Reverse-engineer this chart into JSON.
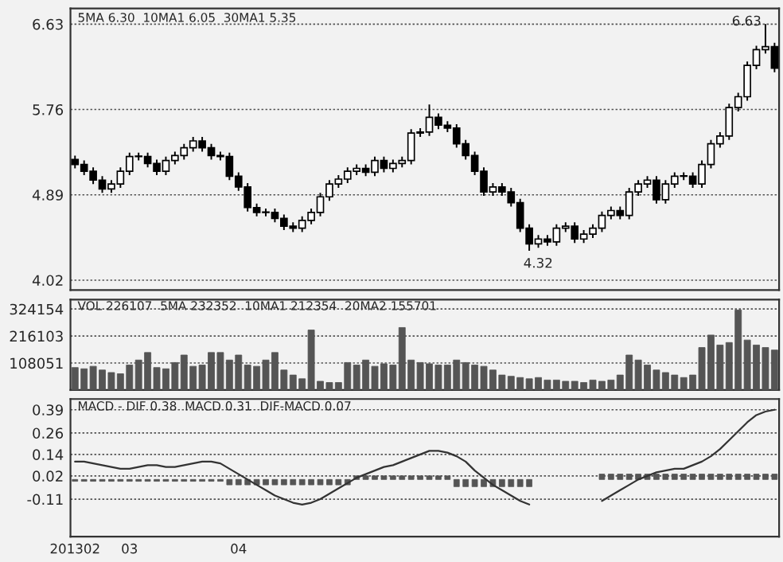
{
  "chart_data": [
    {
      "type": "candlestick",
      "categories": [
        null,
        null,
        null,
        null,
        null,
        null,
        null,
        null,
        null,
        null,
        null,
        null,
        null,
        null,
        null,
        null,
        null,
        null,
        null,
        null,
        null,
        null,
        null,
        null,
        null,
        null,
        null,
        null,
        null,
        null,
        null,
        null,
        null,
        null,
        null,
        null,
        null,
        null,
        null,
        null,
        null,
        null,
        null,
        null,
        null,
        null,
        null,
        null,
        null,
        null,
        null,
        null,
        null,
        null,
        null,
        null,
        null,
        null,
        null,
        null,
        null,
        null,
        null,
        null,
        null,
        null,
        null,
        null,
        null,
        null,
        null,
        null,
        null,
        null,
        null,
        null,
        null,
        null
      ],
      "ohlc": [
        [
          5.25,
          5.29,
          5.16,
          5.2
        ],
        [
          5.2,
          5.24,
          5.09,
          5.13
        ],
        [
          5.13,
          5.17,
          5.0,
          5.04
        ],
        [
          5.04,
          5.08,
          4.91,
          4.95
        ],
        [
          4.95,
          5.04,
          4.91,
          5.0
        ],
        [
          5.0,
          5.17,
          4.96,
          5.13
        ],
        [
          5.13,
          5.32,
          5.09,
          5.28
        ],
        [
          5.28,
          5.32,
          5.24,
          5.28
        ],
        [
          5.28,
          5.32,
          5.17,
          5.21
        ],
        [
          5.21,
          5.25,
          5.09,
          5.13
        ],
        [
          5.13,
          5.28,
          5.09,
          5.24
        ],
        [
          5.24,
          5.33,
          5.2,
          5.29
        ],
        [
          5.29,
          5.41,
          5.25,
          5.37
        ],
        [
          5.37,
          5.48,
          5.33,
          5.44
        ],
        [
          5.44,
          5.48,
          5.33,
          5.37
        ],
        [
          5.37,
          5.41,
          5.25,
          5.29
        ],
        [
          5.29,
          5.33,
          5.24,
          5.28
        ],
        [
          5.28,
          5.32,
          5.04,
          5.08
        ],
        [
          5.08,
          5.12,
          4.93,
          4.97
        ],
        [
          4.97,
          5.01,
          4.72,
          4.76
        ],
        [
          4.76,
          4.8,
          4.67,
          4.71
        ],
        [
          4.71,
          4.75,
          4.67,
          4.71
        ],
        [
          4.71,
          4.75,
          4.61,
          4.65
        ],
        [
          4.65,
          4.69,
          4.53,
          4.57
        ],
        [
          4.57,
          4.61,
          4.51,
          4.55
        ],
        [
          4.55,
          4.67,
          4.51,
          4.63
        ],
        [
          4.63,
          4.75,
          4.59,
          4.71
        ],
        [
          4.71,
          4.91,
          4.67,
          4.87
        ],
        [
          4.87,
          5.04,
          4.83,
          5.0
        ],
        [
          5.0,
          5.09,
          4.96,
          5.05
        ],
        [
          5.05,
          5.17,
          5.01,
          5.13
        ],
        [
          5.13,
          5.2,
          5.09,
          5.16
        ],
        [
          5.16,
          5.2,
          5.08,
          5.12
        ],
        [
          5.12,
          5.28,
          5.08,
          5.24
        ],
        [
          5.24,
          5.28,
          5.12,
          5.16
        ],
        [
          5.16,
          5.25,
          5.12,
          5.21
        ],
        [
          5.21,
          5.28,
          5.17,
          5.24
        ],
        [
          5.24,
          5.56,
          5.2,
          5.52
        ],
        [
          5.52,
          5.57,
          5.48,
          5.53
        ],
        [
          5.53,
          5.81,
          5.49,
          5.68
        ],
        [
          5.68,
          5.72,
          5.56,
          5.6
        ],
        [
          5.6,
          5.64,
          5.53,
          5.57
        ],
        [
          5.57,
          5.61,
          5.37,
          5.41
        ],
        [
          5.41,
          5.45,
          5.25,
          5.29
        ],
        [
          5.29,
          5.33,
          5.09,
          5.13
        ],
        [
          5.13,
          5.17,
          4.88,
          4.92
        ],
        [
          4.92,
          5.01,
          4.88,
          4.97
        ],
        [
          4.97,
          5.01,
          4.88,
          4.92
        ],
        [
          4.92,
          4.96,
          4.77,
          4.81
        ],
        [
          4.81,
          4.85,
          4.51,
          4.55
        ],
        [
          4.55,
          4.59,
          4.32,
          4.39
        ],
        [
          4.39,
          4.48,
          4.35,
          4.44
        ],
        [
          4.44,
          4.48,
          4.37,
          4.41
        ],
        [
          4.41,
          4.59,
          4.37,
          4.55
        ],
        [
          4.55,
          4.61,
          4.51,
          4.57
        ],
        [
          4.57,
          4.61,
          4.4,
          4.44
        ],
        [
          4.44,
          4.53,
          4.4,
          4.49
        ],
        [
          4.49,
          4.59,
          4.45,
          4.55
        ],
        [
          4.55,
          4.72,
          4.51,
          4.68
        ],
        [
          4.68,
          4.77,
          4.64,
          4.73
        ],
        [
          4.73,
          4.77,
          4.64,
          4.68
        ],
        [
          4.68,
          4.96,
          4.64,
          4.92
        ],
        [
          4.92,
          5.04,
          4.88,
          5.0
        ],
        [
          5.0,
          5.08,
          4.96,
          5.04
        ],
        [
          5.04,
          5.08,
          4.8,
          4.84
        ],
        [
          4.84,
          5.04,
          4.8,
          5.0
        ],
        [
          5.0,
          5.12,
          4.96,
          5.08
        ],
        [
          5.08,
          5.12,
          5.04,
          5.08
        ],
        [
          5.08,
          5.12,
          4.96,
          5.0
        ],
        [
          5.0,
          5.24,
          4.96,
          5.2
        ],
        [
          5.2,
          5.45,
          5.16,
          5.41
        ],
        [
          5.41,
          5.53,
          5.37,
          5.49
        ],
        [
          5.49,
          5.82,
          5.45,
          5.78
        ],
        [
          5.78,
          5.93,
          5.74,
          5.89
        ],
        [
          5.89,
          6.25,
          5.85,
          6.21
        ],
        [
          6.21,
          6.41,
          6.17,
          6.37
        ],
        [
          6.37,
          6.63,
          6.33,
          6.4
        ],
        [
          6.4,
          6.44,
          6.14,
          6.18
        ]
      ],
      "ylim": [
        3.92,
        6.79
      ],
      "yticks": [
        4.02,
        4.89,
        5.76,
        6.63
      ],
      "grid": "y",
      "tick_labels": "y",
      "annotations": [
        "5MA 6.30  10MA1 6.05  30MA1 5.35",
        "6.63",
        "4.32"
      ]
    },
    {
      "type": "bar",
      "categories": [
        null,
        null,
        null,
        null,
        null,
        null,
        null,
        null,
        null,
        null,
        null,
        null,
        null,
        null,
        null,
        null,
        null,
        null,
        null,
        null,
        null,
        null,
        null,
        null,
        null,
        null,
        null,
        null,
        null,
        null,
        null,
        null,
        null,
        null,
        null,
        null,
        null,
        null,
        null,
        null,
        null,
        null,
        null,
        null,
        null,
        null,
        null,
        null,
        null,
        null,
        null,
        null,
        null,
        null,
        null,
        null,
        null,
        null,
        null,
        null,
        null,
        null,
        null,
        null,
        null,
        null,
        null,
        null,
        null,
        null,
        null,
        null,
        null,
        null,
        null,
        null,
        null,
        null
      ],
      "series": [
        {
          "color": "#555555",
          "values": [
            90000,
            85000,
            95000,
            80000,
            70000,
            65000,
            100000,
            120000,
            150000,
            90000,
            85000,
            110000,
            140000,
            95000,
            100000,
            150000,
            150000,
            120000,
            140000,
            100000,
            95000,
            120000,
            150000,
            80000,
            60000,
            45000,
            240000,
            35000,
            30000,
            30000,
            110000,
            100000,
            120000,
            95000,
            105000,
            100000,
            250000,
            120000,
            110000,
            105000,
            100000,
            100000,
            120000,
            110000,
            100000,
            95000,
            80000,
            60000,
            55000,
            50000,
            45000,
            50000,
            40000,
            40000,
            35000,
            35000,
            30000,
            40000,
            35000,
            40000,
            60000,
            140000,
            120000,
            100000,
            80000,
            70000,
            60000,
            50000,
            60000,
            170000,
            220000,
            180000,
            190000,
            320000,
            200000,
            180000,
            170000,
            160000
          ]
        }
      ],
      "ylim": [
        0,
        362000
      ],
      "yticks": [
        108051,
        216103,
        324154
      ],
      "grid": "y",
      "tick_labels": "y",
      "annotations": [
        "VOL 226107  5MA 232352  10MA1 212354  20MA2 155701"
      ]
    },
    {
      "type": "line",
      "categories": [
        "201302",
        null,
        null,
        null,
        null,
        null,
        "03",
        null,
        null,
        null,
        null,
        null,
        null,
        null,
        null,
        null,
        null,
        null,
        "04",
        null,
        null,
        null,
        null,
        null,
        null,
        null,
        null,
        null,
        null,
        null,
        null,
        null,
        null,
        null,
        null,
        null,
        null,
        null,
        null,
        null,
        null,
        null,
        null,
        null,
        null,
        null,
        null,
        null,
        null,
        null,
        null,
        null,
        null,
        null,
        null,
        null,
        null,
        null,
        null,
        null,
        null,
        null,
        null,
        null,
        null,
        null,
        null,
        null,
        null,
        null,
        null,
        null,
        null,
        null,
        null,
        null,
        null,
        null
      ],
      "series": [
        {
          "type": "line",
          "color": "#333333",
          "values": [
            0.1,
            0.1,
            0.09,
            0.08,
            0.07,
            0.06,
            0.06,
            0.07,
            0.08,
            0.08,
            0.07,
            0.07,
            0.08,
            0.09,
            0.1,
            0.1,
            0.09,
            0.06,
            0.03,
            0.0,
            -0.03,
            -0.06,
            -0.09,
            -0.11,
            -0.13,
            -0.14,
            -0.13,
            -0.11,
            -0.08,
            -0.05,
            -0.02,
            0.01,
            0.03,
            0.05,
            0.07,
            0.08,
            0.1,
            0.12,
            0.14,
            0.16,
            0.16,
            0.15,
            0.13,
            0.1,
            0.05,
            0.01,
            -0.03,
            -0.06,
            -0.09,
            -0.12,
            -0.14,
            null,
            null,
            null,
            null,
            null,
            null,
            null,
            -0.12,
            -0.09,
            -0.06,
            -0.03,
            0.0,
            0.02,
            0.04,
            0.05,
            0.06,
            0.06,
            0.08,
            0.1,
            0.13,
            0.17,
            0.22,
            0.27,
            0.32,
            0.36,
            0.38,
            0.39
          ]
        },
        {
          "type": "bar",
          "color": "#555555",
          "values": [
            -0.01,
            -0.01,
            -0.01,
            -0.01,
            -0.01,
            -0.01,
            -0.01,
            -0.01,
            -0.01,
            -0.01,
            -0.01,
            -0.01,
            -0.01,
            -0.01,
            -0.01,
            -0.01,
            -0.01,
            -0.03,
            -0.03,
            -0.03,
            -0.03,
            -0.03,
            -0.03,
            -0.03,
            -0.03,
            -0.03,
            -0.03,
            -0.03,
            -0.03,
            -0.03,
            -0.03,
            0.02,
            0.02,
            0.02,
            0.02,
            0.02,
            0.02,
            0.02,
            0.02,
            0.02,
            0.02,
            0.02,
            -0.04,
            -0.04,
            -0.04,
            -0.04,
            -0.04,
            -0.04,
            -0.04,
            -0.04,
            -0.04,
            null,
            null,
            null,
            null,
            null,
            null,
            null,
            0.03,
            0.03,
            0.03,
            0.03,
            0.03,
            0.03,
            0.03,
            0.03,
            0.03,
            0.03,
            0.03,
            0.03,
            0.03,
            0.03,
            0.03,
            0.03,
            0.03,
            0.03,
            0.03,
            0.03
          ]
        }
      ],
      "ylim": [
        -0.32,
        0.45
      ],
      "yticks": [
        -0.11,
        0.02,
        0.14,
        {
          "value": 0.26,
          "label": "0.26"
        },
        0.39
      ],
      "grid": "y",
      "annotations": [
        "MACD - DIF 0.38  MACD 0.31  DIF-MACD 0.07"
      ]
    }
  ]
}
